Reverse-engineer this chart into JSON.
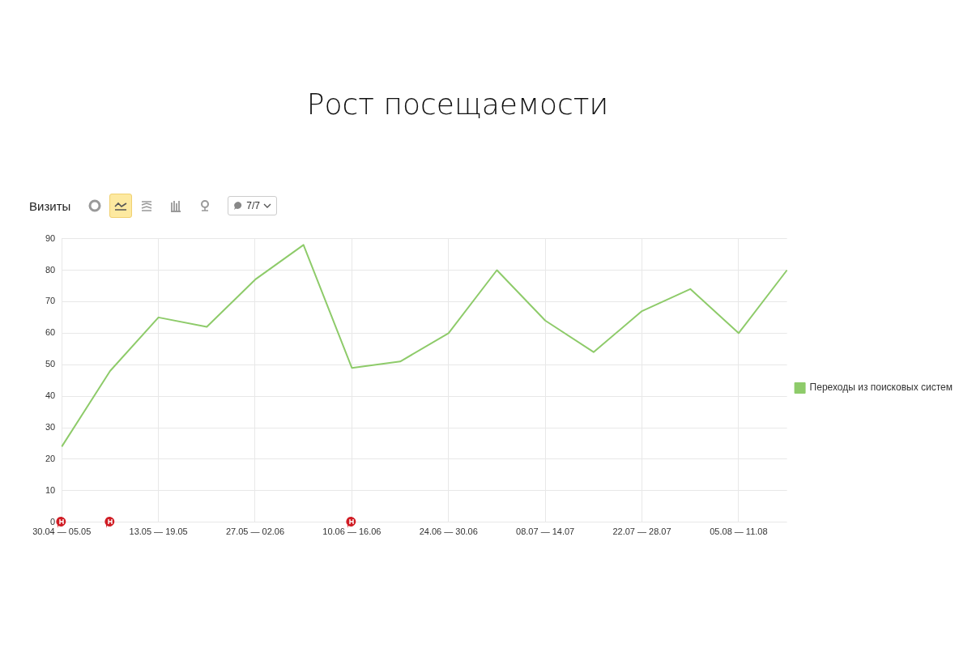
{
  "chart_data": {
    "type": "line",
    "title": "Рост посещаемости",
    "subtitle": "Визиты",
    "annotations": [
      "7/7"
    ],
    "categories": [
      "30.04 — 05.05",
      null,
      "13.05 — 19.05",
      null,
      "27.05 — 02.06",
      null,
      "10.06 — 16.06",
      null,
      "24.06 — 30.06",
      null,
      "08.07 — 14.07",
      null,
      "22.07 — 28.07",
      null,
      "05.08 — 11.08",
      null
    ],
    "series": [
      {
        "name": "Переходы из поисковых систем",
        "color": "#8ecb6a",
        "values": [
          24,
          48,
          65,
          62,
          77,
          88,
          49,
          51,
          60,
          80,
          64,
          54,
          67,
          74,
          60,
          80
        ]
      }
    ],
    "ylim": [
      0,
      90
    ],
    "yticks": [
      0,
      10,
      20,
      30,
      40,
      50,
      60,
      70,
      80,
      90
    ],
    "grid": true,
    "legend": "right",
    "marker": "none",
    "line_style": "solid"
  }
}
